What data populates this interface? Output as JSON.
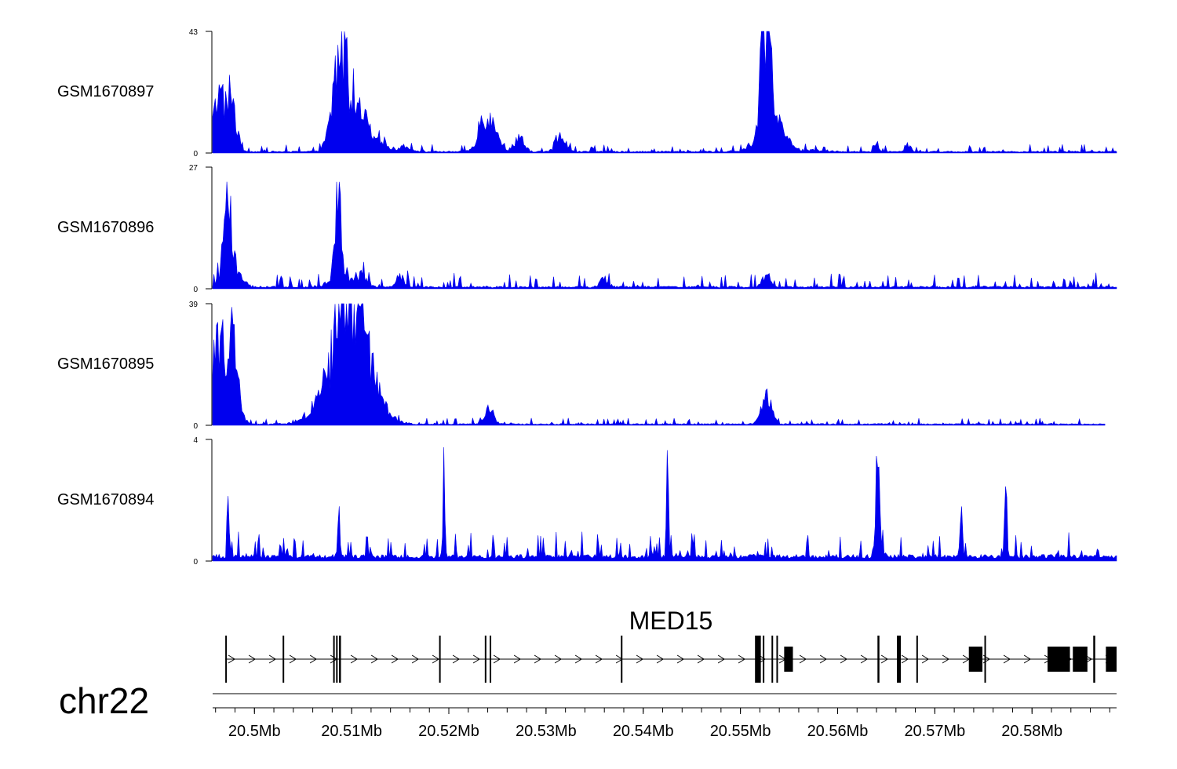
{
  "chart_data": {
    "type": "area",
    "title": "",
    "chromosome": "chr22",
    "x_unit": "Mb",
    "xlim": [
      20.4957,
      20.5887
    ],
    "xticks": [
      {
        "value": 20.5,
        "label": "20.5Mb"
      },
      {
        "value": 20.51,
        "label": "20.51Mb"
      },
      {
        "value": 20.52,
        "label": "20.52Mb"
      },
      {
        "value": 20.53,
        "label": "20.53Mb"
      },
      {
        "value": 20.54,
        "label": "20.54Mb"
      },
      {
        "value": 20.55,
        "label": "20.55Mb"
      },
      {
        "value": 20.56,
        "label": "20.56Mb"
      },
      {
        "value": 20.57,
        "label": "20.57Mb"
      },
      {
        "value": 20.58,
        "label": "20.58Mb"
      }
    ],
    "color": "#0000ee",
    "tracks": [
      {
        "name": "GSM1670897",
        "ylim": [
          0,
          43
        ],
        "ymin_label": "0",
        "ymax_label": "43",
        "baseline": 0.5,
        "noise": 0.6,
        "peaks": [
          [
            20.4963,
            0.0006,
            17
          ],
          [
            20.4976,
            0.0005,
            18
          ],
          [
            20.5088,
            0.0007,
            26
          ],
          [
            20.5098,
            0.0012,
            12
          ],
          [
            20.5112,
            0.0015,
            5
          ],
          [
            20.5125,
            0.0008,
            2
          ],
          [
            20.5155,
            0.0006,
            2
          ],
          [
            20.5238,
            0.0007,
            12
          ],
          [
            20.5248,
            0.0006,
            3
          ],
          [
            20.5272,
            0.0005,
            5
          ],
          [
            20.5315,
            0.0005,
            4
          ],
          [
            20.5527,
            0.0005,
            40
          ],
          [
            20.5532,
            0.0012,
            12
          ],
          [
            20.564,
            0.0002,
            4.5
          ],
          [
            20.5672,
            0.0003,
            3
          ],
          [
            20.558,
            0.001,
            0.5
          ]
        ]
      },
      {
        "name": "GSM1670896",
        "ylim": [
          0,
          27
        ],
        "ymin_label": "0",
        "ymax_label": "27",
        "baseline": 0.4,
        "noise": 1.2,
        "peaks": [
          [
            20.4972,
            0.0003,
            26
          ],
          [
            20.4976,
            0.0008,
            6
          ],
          [
            20.5086,
            0.0003,
            17
          ],
          [
            20.5088,
            0.0009,
            4
          ],
          [
            20.5112,
            0.0005,
            2.5
          ],
          [
            20.515,
            0.0004,
            2.5
          ],
          [
            20.536,
            0.0004,
            2
          ],
          [
            20.5527,
            0.0004,
            2.5
          ]
        ]
      },
      {
        "name": "GSM1670895",
        "ylim": [
          0,
          39
        ],
        "ymin_label": "0",
        "ymax_label": "39",
        "baseline": 0.4,
        "noise": 0.5,
        "xend": 20.5875,
        "peaks": [
          [
            20.4962,
            0.0006,
            24
          ],
          [
            20.4976,
            0.0006,
            27
          ],
          [
            20.5096,
            0.002,
            30
          ],
          [
            20.5092,
            0.0006,
            10
          ],
          [
            20.5115,
            0.001,
            6
          ],
          [
            20.5241,
            0.0005,
            4.5
          ],
          [
            20.5527,
            0.0005,
            8
          ]
        ]
      },
      {
        "name": "GSM1670894",
        "ylim": [
          0,
          4
        ],
        "ymin_label": "0",
        "ymax_label": "4",
        "baseline": 0.15,
        "noise": 1.9,
        "peaks": [
          [
            20.4973,
            0.0001,
            2.4
          ],
          [
            20.5087,
            0.0001,
            1.8
          ],
          [
            20.5195,
            0.0001,
            3.0
          ],
          [
            20.5425,
            0.0001,
            3.0
          ],
          [
            20.5641,
            0.0001,
            4.0
          ],
          [
            20.5727,
            0.0001,
            2.0
          ],
          [
            20.5773,
            0.0001,
            2.5
          ],
          [
            20.5642,
            0.0003,
            1.0
          ]
        ]
      }
    ],
    "gene": {
      "name": "MED15",
      "strand": "+",
      "start": 20.497,
      "end": 20.5887,
      "exons": [
        [
          20.497,
          20.4971
        ],
        [
          20.5029,
          20.503
        ],
        [
          20.5081,
          20.5082
        ],
        [
          20.5084,
          20.5085
        ],
        [
          20.5087,
          20.5089
        ],
        [
          20.519,
          20.5191
        ],
        [
          20.5237,
          20.5238
        ],
        [
          20.5242,
          20.5243
        ],
        [
          20.5377,
          20.5378
        ],
        [
          20.5515,
          20.5521
        ],
        [
          20.5523,
          20.5524
        ],
        [
          20.5532,
          20.5533
        ],
        [
          20.5537,
          20.5538
        ],
        [
          20.5545,
          20.5554
        ],
        [
          20.5641,
          20.5643
        ],
        [
          20.5661,
          20.5665
        ],
        [
          20.5681,
          20.5682
        ],
        [
          20.5735,
          20.5749
        ],
        [
          20.5751,
          20.5752
        ],
        [
          20.5816,
          20.5839
        ],
        [
          20.5842,
          20.5857
        ],
        [
          20.5863,
          20.5865
        ],
        [
          20.5876,
          20.5887
        ]
      ]
    }
  }
}
